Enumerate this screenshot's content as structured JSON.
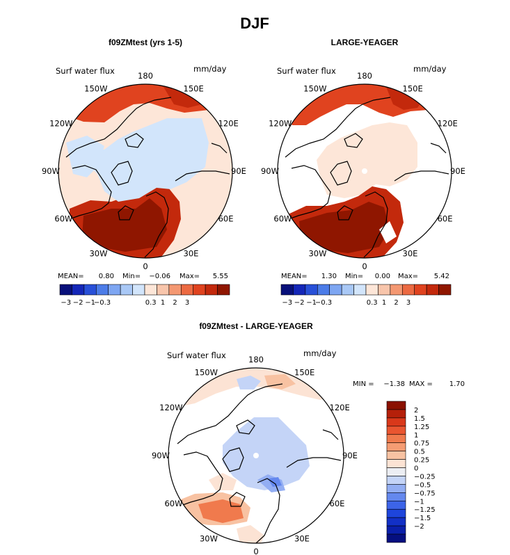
{
  "chart_data": {
    "type": "heatmap",
    "title": "DJF",
    "variable": "Surf water flux",
    "units": "mm/day",
    "projection": "north polar stereographic",
    "longitude_labels": [
      "180",
      "150E",
      "120E",
      "90E",
      "60E",
      "30E",
      "0",
      "30W",
      "60W",
      "90W",
      "120W",
      "150W"
    ],
    "panels": [
      {
        "title": "f09ZMtest (yrs 1-5)",
        "stats": {
          "mean_label": "MEAN=",
          "mean": "0.80",
          "min_label": "Min=",
          "min": "−0.06",
          "max_label": "Max=",
          "max": "5.55"
        },
        "levels": [
          -3,
          -2,
          -1,
          -0.3,
          0.3,
          1,
          2,
          3
        ],
        "tick_labels": [
          "−3",
          "−2",
          "−1",
          "−0.3",
          "0.3",
          "1",
          "2",
          "3"
        ],
        "colors": [
          "#08107a",
          "#1427b8",
          "#2850d8",
          "#4c7ce8",
          "#7ea6f2",
          "#a9c8f6",
          "#d2e5fb",
          "#fde6d8",
          "#f8c5ab",
          "#f49872",
          "#ec6a42",
          "#e0431f",
          "#c3290c",
          "#8f1600"
        ]
      },
      {
        "title": "LARGE-YEAGER",
        "stats": {
          "mean_label": "MEAN=",
          "mean": "1.30",
          "min_label": "Min=",
          "min": "0.00",
          "max_label": "Max=",
          "max": "5.42"
        },
        "levels": [
          -3,
          -2,
          -1,
          -0.3,
          0.3,
          1,
          2,
          3
        ],
        "tick_labels": [
          "−3",
          "−2",
          "−1",
          "−0.3",
          "0.3",
          "1",
          "2",
          "3"
        ],
        "colors": [
          "#08107a",
          "#1427b8",
          "#2850d8",
          "#4c7ce8",
          "#7ea6f2",
          "#a9c8f6",
          "#d2e5fb",
          "#fde6d8",
          "#f8c5ab",
          "#f49872",
          "#ec6a42",
          "#e0431f",
          "#c3290c",
          "#8f1600"
        ]
      },
      {
        "title": "f09ZMtest - LARGE-YEAGER",
        "stats": {
          "min_label": "MIN =",
          "min": "−1.38",
          "max_label": "MAX =",
          "max": "1.70"
        },
        "levels": [
          -2,
          -1.5,
          -1.25,
          -1,
          -0.75,
          -0.5,
          -0.25,
          0,
          0.25,
          0.5,
          0.75,
          1,
          1.25,
          1.5,
          2
        ],
        "tick_labels": [
          "−2",
          "−1.5",
          "−1.25",
          "−1",
          "−0.75",
          "−0.5",
          "−0.25",
          "0",
          "0.25",
          "0.5",
          "0.75",
          "1",
          "1.25",
          "1.5",
          "2"
        ],
        "colors": [
          "#050f80",
          "#0a1faa",
          "#1230c6",
          "#1e45dc",
          "#3d64e8",
          "#6488ee",
          "#93aef3",
          "#c4d4f7",
          "#eceef3",
          "#fce3d4",
          "#f8c2a2",
          "#f59c73",
          "#f07a4d",
          "#e95530",
          "#d9381a",
          "#b5200a",
          "#8a1100"
        ]
      }
    ]
  }
}
